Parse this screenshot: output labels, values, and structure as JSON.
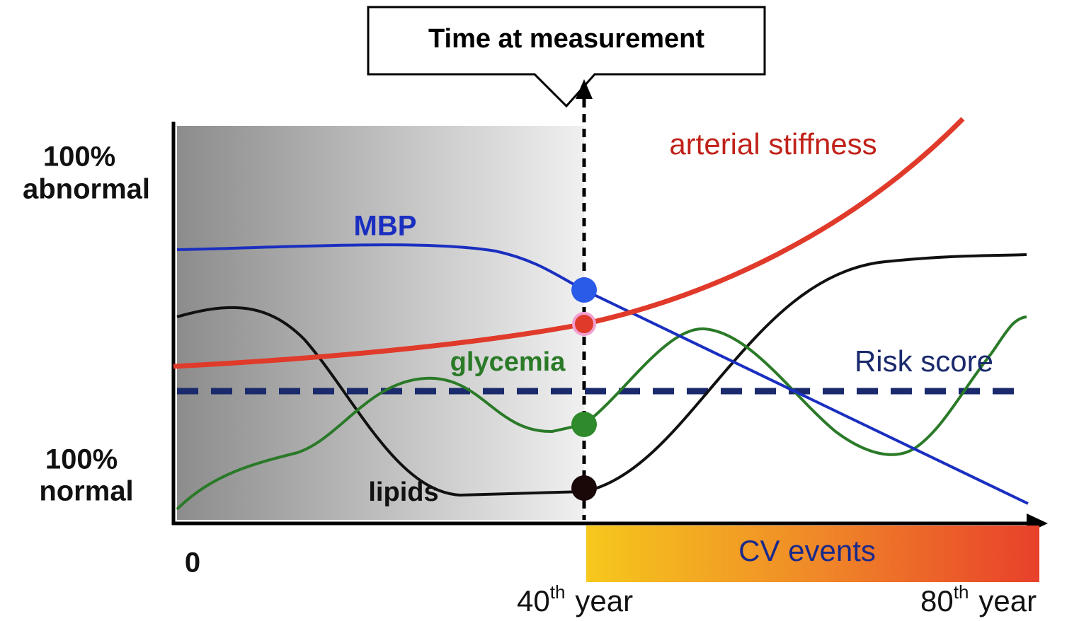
{
  "callout": "Time at measurement",
  "y_axis": {
    "top": {
      "line1": "100%",
      "line2": "abnormal"
    },
    "bottom": {
      "line1": "100%",
      "line2": "normal"
    }
  },
  "curves": {
    "arterial_stiffness": "arterial stiffness",
    "mbp": "MBP",
    "glycemia": "glycemia",
    "risk_score": "Risk score",
    "lipids": "lipids"
  },
  "x_axis": {
    "origin": "0",
    "start": {
      "number": "40",
      "suffix": "th",
      "unit": "year"
    },
    "end": {
      "number": "80",
      "suffix": "th",
      "unit": "year"
    }
  },
  "band": "CV events"
}
